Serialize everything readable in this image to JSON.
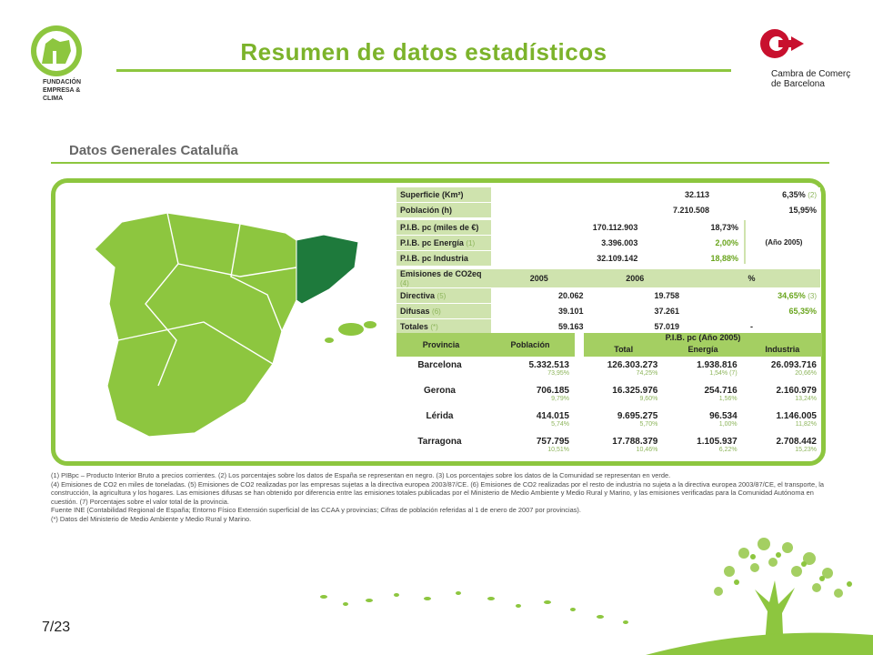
{
  "header": {
    "title": "Resumen de datos estadísticos",
    "left_logo": {
      "lines": [
        "FUNDACIÓN",
        "EMPRESA &",
        "CLIMA"
      ],
      "icon": "tree-logo-icon"
    },
    "right_logo": {
      "lines": [
        "Cambra de Comerç",
        "de Barcelona"
      ],
      "icon": "cambra-c-logo-icon"
    }
  },
  "panel": {
    "title": "Datos Generales Cataluña",
    "general": [
      {
        "label": "Superficie (Km²)",
        "value": "32.113",
        "pct": "6,35%",
        "note": "(2)"
      },
      {
        "label": "Población (h)",
        "value": "7.210.508",
        "pct": "15,95%",
        "note": ""
      }
    ],
    "pib": [
      {
        "label": "P.I.B. pc (miles de €)",
        "note": "",
        "value": "170.112.903",
        "pct": "18,73%"
      },
      {
        "label": "P.I.B. pc Energía",
        "note": "(1)",
        "value": "3.396.003",
        "pct": "2,00%"
      },
      {
        "label": "P.I.B. pc Industria",
        "note": "",
        "value": "32.109.142",
        "pct": "18,88%"
      }
    ],
    "ano_note": "(Año 2005)",
    "emisiones": {
      "header": {
        "label": "Emisiones de CO2eq",
        "note": "(4)",
        "c1": "2005",
        "c2": "2006",
        "c3": "%"
      },
      "rows": [
        {
          "label": "Directiva",
          "note": "(5)",
          "c1": "20.062",
          "c2": "19.758",
          "c3": "34,65%",
          "c3note": "(3)"
        },
        {
          "label": "Difusas",
          "note": "(6)",
          "c1": "39.101",
          "c2": "37.261",
          "c3": "65,35%",
          "c3note": ""
        },
        {
          "label": "Totales",
          "note": "(*)",
          "c1": "59.163",
          "c2": "57.019",
          "c3": "-",
          "c3note": ""
        }
      ]
    },
    "provincias": {
      "headers": {
        "provincia": "Provincia",
        "poblacion": "Población",
        "pib_title": "P.I.B. pc (Año 2005)",
        "total": "Total",
        "energia": "Energía",
        "industria": "Industria"
      },
      "rows": [
        {
          "name": "Barcelona",
          "pob": "5.332.513",
          "pob_pct": "73,95%",
          "total": "126.303.273",
          "total_pct": "74,25%",
          "energia": "1.938.816",
          "energia_pct": "1,54% (7)",
          "industria": "26.093.716",
          "industria_pct": "20,66%"
        },
        {
          "name": "Gerona",
          "pob": "706.185",
          "pob_pct": "9,79%",
          "total": "16.325.976",
          "total_pct": "9,60%",
          "energia": "254.716",
          "energia_pct": "1,56%",
          "industria": "2.160.979",
          "industria_pct": "13,24%"
        },
        {
          "name": "Lérida",
          "pob": "414.015",
          "pob_pct": "5,74%",
          "total": "9.695.275",
          "total_pct": "5,70%",
          "energia": "96.534",
          "energia_pct": "1,00%",
          "industria": "1.146.005",
          "industria_pct": "11,82%"
        },
        {
          "name": "Tarragona",
          "pob": "757.795",
          "pob_pct": "10,51%",
          "total": "17.788.379",
          "total_pct": "10,46%",
          "energia": "1.105.937",
          "energia_pct": "6,22%",
          "industria": "2.708.442",
          "industria_pct": "15,23%"
        }
      ]
    },
    "footnotes": [
      "(1) PIBpc – Producto Interior Bruto a precios corrientes. (2) Los porcentajes sobre los datos de España se representan en negro. (3) Los porcentajes sobre los datos de la Comunidad se representan en verde.",
      "(4) Emisiones de CO2 en miles de toneladas. (5) Emisiones de CO2 realizadas por las empresas sujetas a la directiva europea 2003/87/CE. (6) Emisiones de CO2 realizadas por el resto de industria no sujeta a la directiva europea 2003/87/CE, el transporte, la construcción, la agricultura y los hogares. Las emisiones difusas se han obtenido por diferencia entre las emisiones totales publicadas por el Ministerio de Medio Ambiente y Medio Rural y Marino, y las emisiones verificadas para la Comunidad Autónoma en cuestión. (7) Porcentajes sobre el valor total de la provincia.",
      "Fuente INE (Contabilidad Regional de España; Entorno Físico Extensión superficial de las CCAA y provincias; Cifras de población referidas al 1 de enero de 2007 por provincias).",
      "(*) Datos del Ministerio de Medio Ambiente y Medio Rural y Marino."
    ]
  },
  "footer": {
    "page": "7/23",
    "decor_icon": "green-tree-illustration-icon"
  },
  "colors": {
    "accent": "#7cb32b",
    "light": "#cfe3ae",
    "mid": "#a4cf62",
    "catalonia": "#1e7a3c"
  }
}
